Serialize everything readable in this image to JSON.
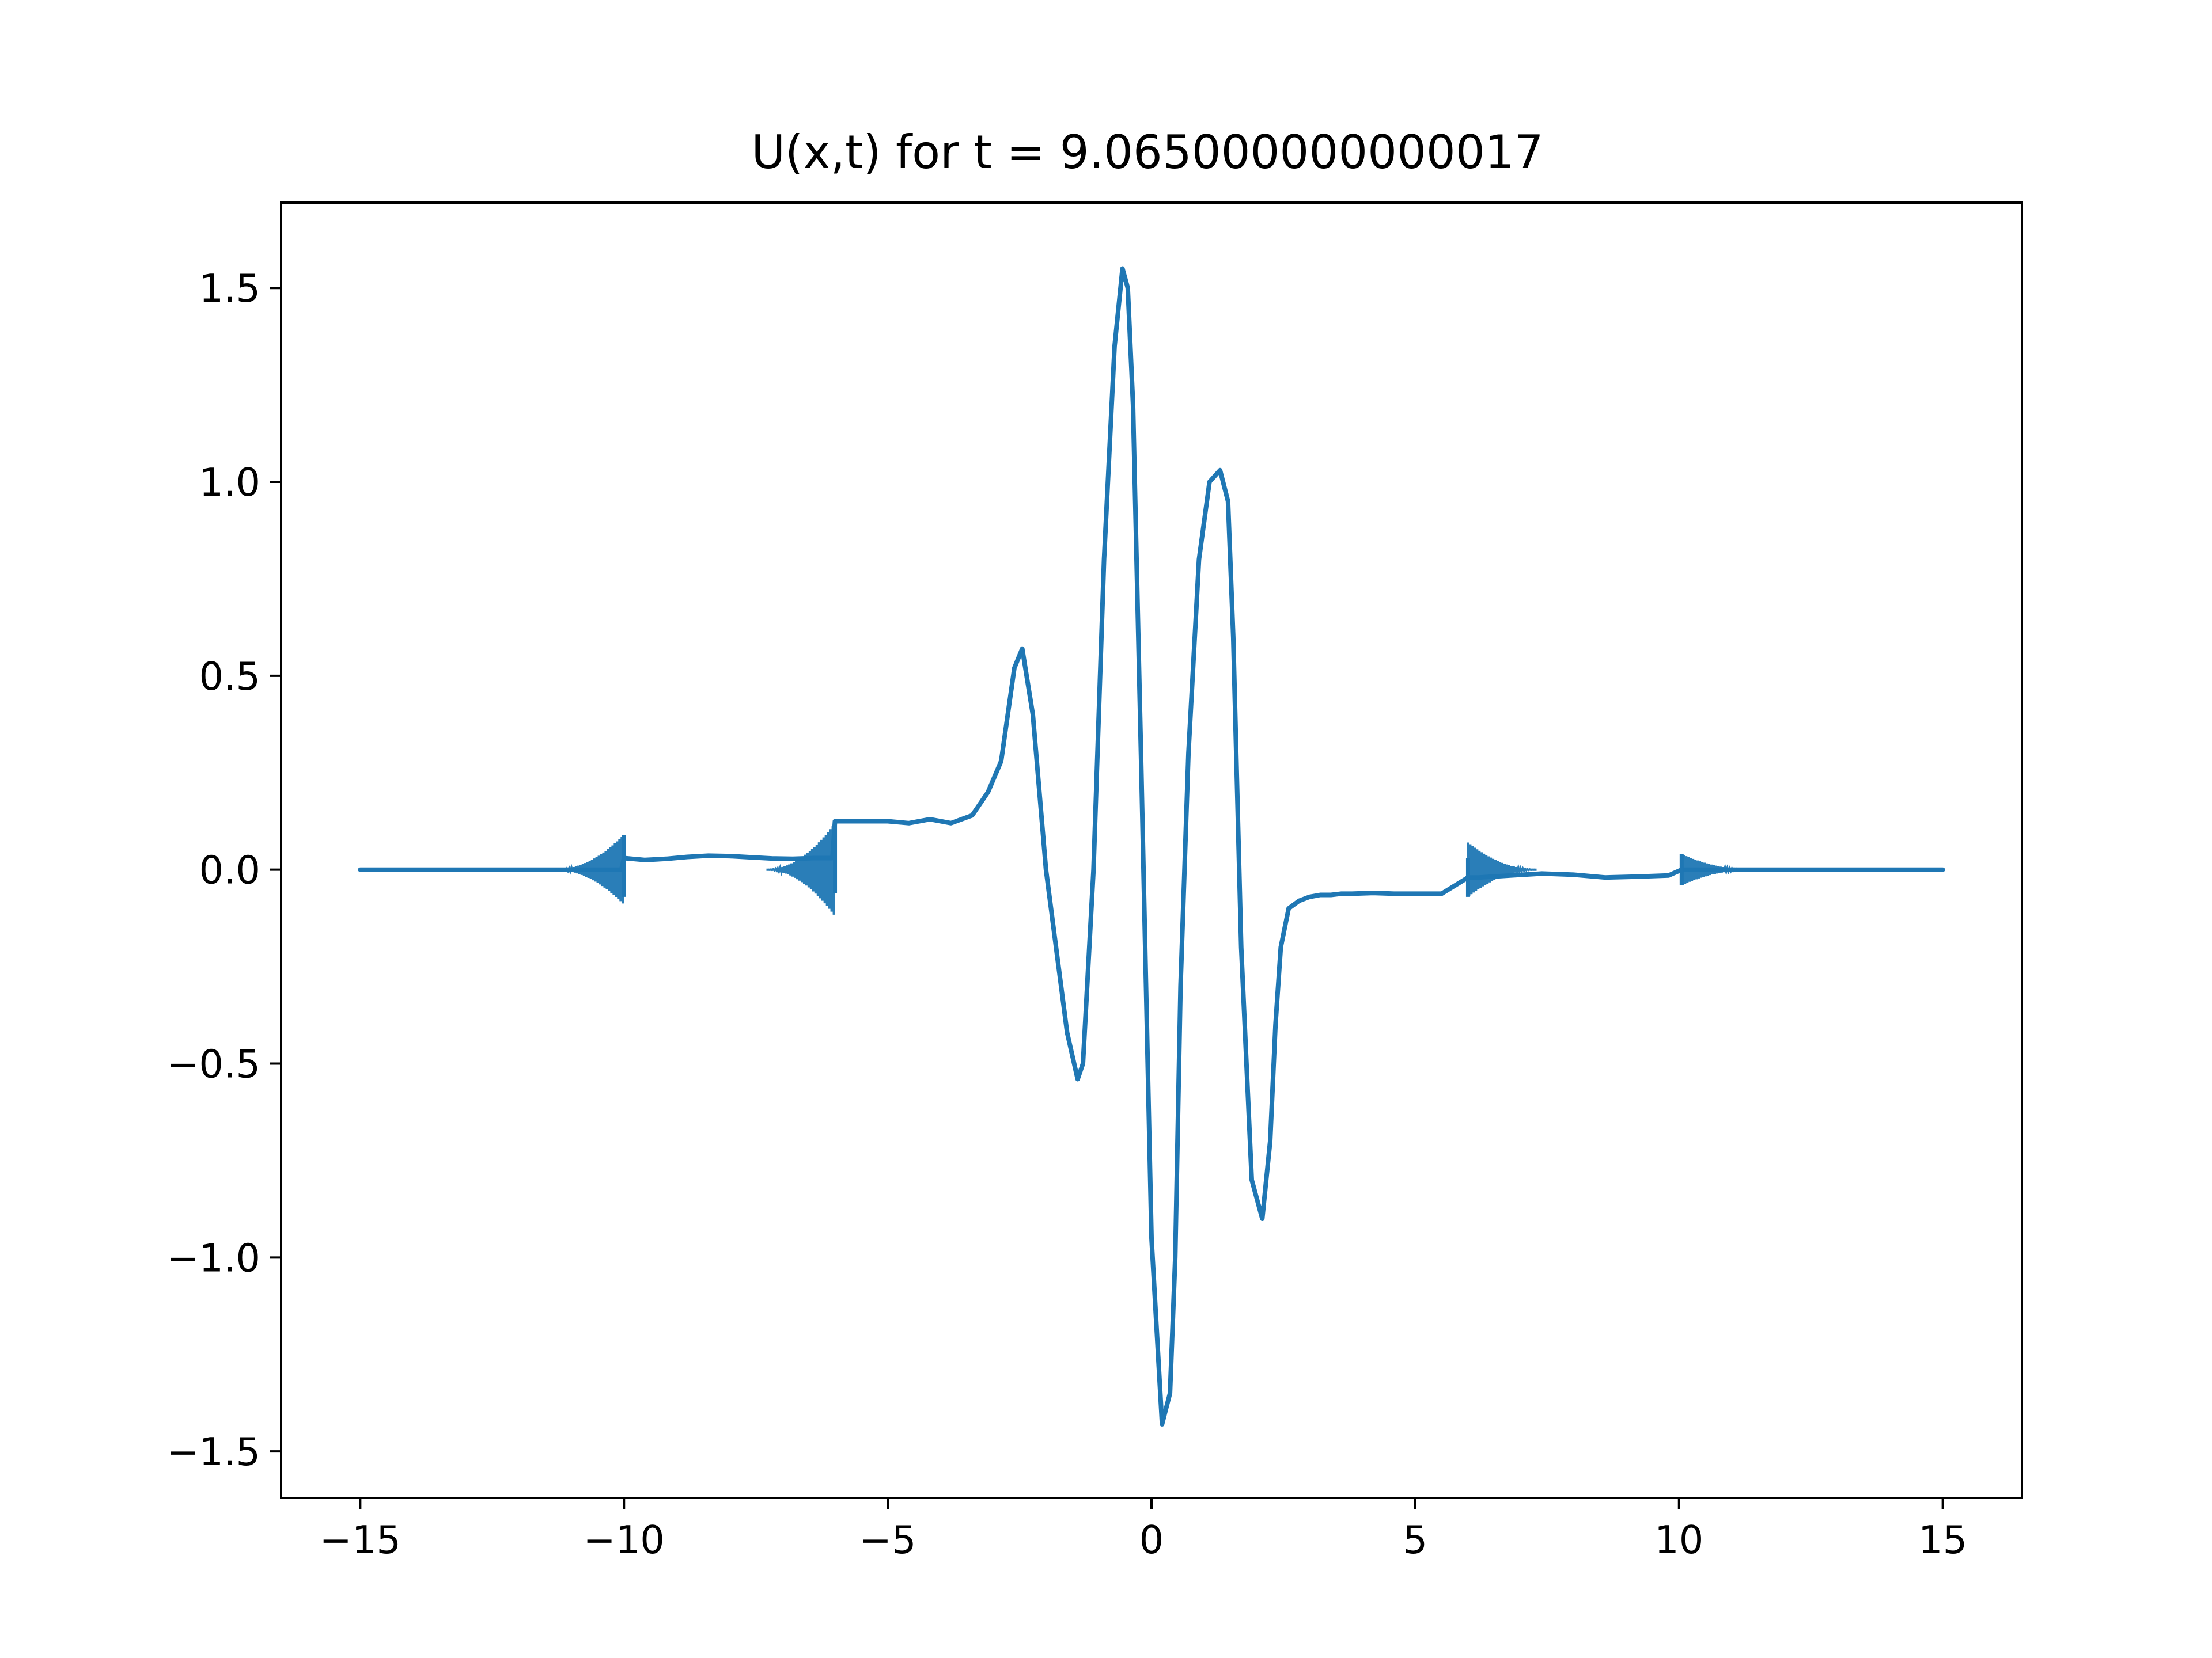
{
  "chart_data": {
    "type": "line",
    "title": "U(x,t) for t = 9.065000000000017",
    "xlabel": "",
    "ylabel": "",
    "xlim": [
      -16.5,
      16.5
    ],
    "ylim": [
      -1.62,
      1.72
    ],
    "xticks": [
      -15,
      -10,
      -5,
      0,
      5,
      10,
      15
    ],
    "xtick_labels": [
      "−15",
      "−10",
      "−5",
      "0",
      "5",
      "10",
      "15"
    ],
    "yticks": [
      -1.5,
      -1.0,
      -0.5,
      0.0,
      0.5,
      1.0,
      1.5
    ],
    "ytick_labels": [
      "−1.5",
      "−1.0",
      "−0.5",
      "0.0",
      "0.5",
      "1.0",
      "1.5"
    ],
    "grid": false,
    "legend": "none",
    "series": [
      {
        "color": "#1f77b4",
        "x": [
          -15,
          -13,
          -12,
          -11,
          -10.4,
          -10.05,
          -10.0,
          -9.6,
          -9.2,
          -8.8,
          -8.4,
          -8.0,
          -7.6,
          -7.2,
          -6.8,
          -6.4,
          -6.05,
          -6.0,
          -5.0,
          -4.6,
          -4.2,
          -3.8,
          -3.4,
          -3.1,
          -2.85,
          -2.6,
          -2.45,
          -2.25,
          -2.0,
          -1.6,
          -1.4,
          -1.3,
          -1.1,
          -0.9,
          -0.7,
          -0.55,
          -0.45,
          -0.35,
          -0.2,
          0.0,
          0.2,
          0.35,
          0.45,
          0.55,
          0.7,
          0.9,
          1.1,
          1.3,
          1.45,
          1.55,
          1.7,
          1.9,
          2.1,
          2.25,
          2.35,
          2.45,
          2.6,
          2.8,
          3.0,
          3.2,
          3.4,
          3.6,
          3.8,
          4.2,
          4.6,
          5.0,
          5.5,
          6.0,
          6.2,
          6.8,
          7.4,
          8.0,
          8.6,
          9.2,
          9.8,
          10.05,
          10.6,
          11.2,
          12.0,
          13.0,
          14.0,
          15.0
        ],
        "y": [
          0.0,
          0.0,
          0.0,
          0.0,
          0.0,
          0.0,
          0.03,
          0.025,
          0.028,
          0.033,
          0.036,
          0.035,
          0.032,
          0.029,
          0.028,
          0.03,
          0.03,
          0.125,
          0.125,
          0.12,
          0.13,
          0.12,
          0.14,
          0.2,
          0.28,
          0.52,
          0.57,
          0.4,
          0.0,
          -0.42,
          -0.54,
          -0.5,
          0.0,
          0.8,
          1.35,
          1.55,
          1.5,
          1.2,
          0.3,
          -0.95,
          -1.43,
          -1.35,
          -1.0,
          -0.3,
          0.3,
          0.8,
          1.0,
          1.03,
          0.95,
          0.6,
          -0.2,
          -0.8,
          -0.9,
          -0.7,
          -0.4,
          -0.2,
          -0.1,
          -0.08,
          -0.07,
          -0.065,
          -0.065,
          -0.062,
          -0.062,
          -0.06,
          -0.062,
          -0.062,
          -0.062,
          -0.02,
          -0.02,
          -0.015,
          -0.01,
          -0.013,
          -0.02,
          -0.018,
          -0.015,
          0.0,
          0.0,
          0.0,
          0.0,
          0.0,
          0.0,
          0.0
        ]
      }
    ],
    "annotations": [
      {
        "x": -10.0,
        "bursts": [
          0.09,
          -0.07
        ]
      },
      {
        "x": -6.0,
        "bursts": [
          0.12,
          -0.06
        ]
      },
      {
        "x": 6.0,
        "bursts": [
          0.03,
          -0.07
        ]
      },
      {
        "x": 10.05,
        "bursts": [
          0.04,
          -0.04
        ]
      }
    ]
  }
}
